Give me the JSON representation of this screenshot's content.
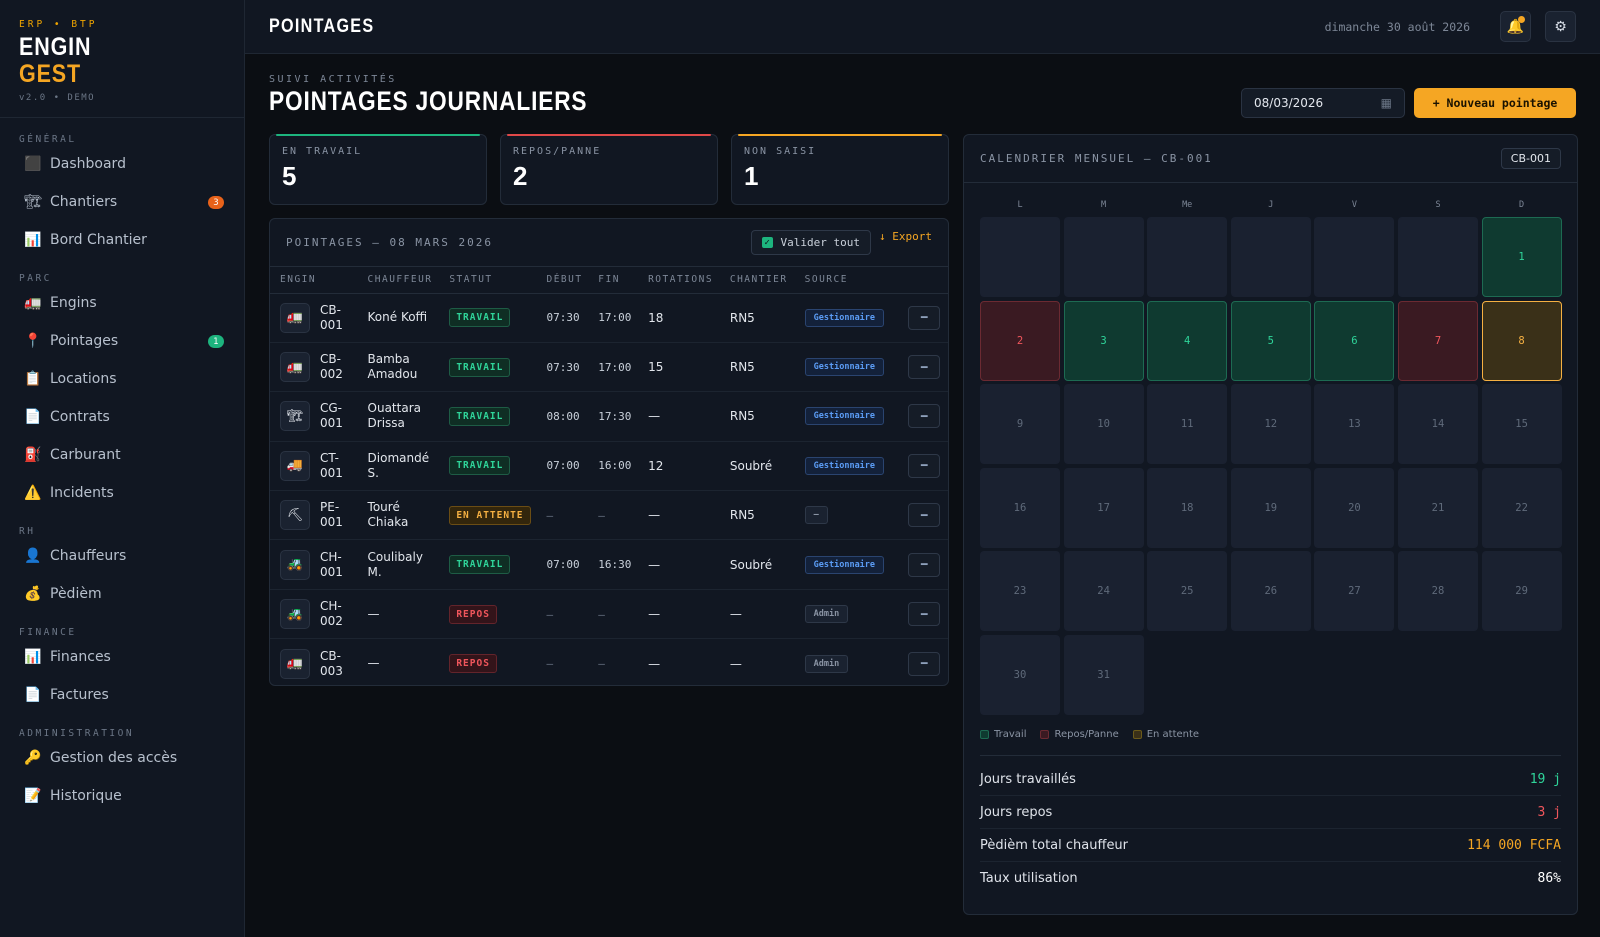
{
  "brand": {
    "tag": "ERP • BTP",
    "line1": "ENGIN",
    "line2": "GEST",
    "version": "v2.0 • DEMO"
  },
  "sidebar": {
    "sections": [
      {
        "title": "GÉNÉRAL",
        "items": [
          {
            "label": "Dashboard",
            "icon": "⬛",
            "icon_name": "dashboard-icon"
          },
          {
            "label": "Chantiers",
            "icon": "🏗",
            "icon_name": "construction-icon",
            "badge": "3",
            "badge_color": "#e8621a"
          },
          {
            "label": "Bord Chantier",
            "icon": "📊",
            "icon_name": "chart-icon"
          }
        ]
      },
      {
        "title": "PARC",
        "items": [
          {
            "label": "Engins",
            "icon": "🚛",
            "icon_name": "truck-icon"
          },
          {
            "label": "Pointages",
            "icon": "📍",
            "icon_name": "pin-icon",
            "badge": "1",
            "badge_color": "#1db47e"
          },
          {
            "label": "Locations",
            "icon": "📋",
            "icon_name": "clipboard-icon"
          },
          {
            "label": "Contrats",
            "icon": "📄",
            "icon_name": "document-icon"
          },
          {
            "label": "Carburant",
            "icon": "⛽",
            "icon_name": "fuel-icon"
          },
          {
            "label": "Incidents",
            "icon": "⚠️",
            "icon_name": "warning-icon"
          }
        ]
      },
      {
        "title": "RH",
        "items": [
          {
            "label": "Chauffeurs",
            "icon": "👤",
            "icon_name": "user-icon"
          },
          {
            "label": "Pèdièm",
            "icon": "💰",
            "icon_name": "money-bag-icon"
          }
        ]
      },
      {
        "title": "FINANCE",
        "items": [
          {
            "label": "Finances",
            "icon": "📊",
            "icon_name": "chart-icon"
          },
          {
            "label": "Factures",
            "icon": "📄",
            "icon_name": "invoice-icon"
          }
        ]
      },
      {
        "title": "ADMINISTRATION",
        "items": [
          {
            "label": "Gestion des accès",
            "icon": "🔑",
            "icon_name": "key-icon"
          },
          {
            "label": "Historique",
            "icon": "📝",
            "icon_name": "history-icon"
          }
        ]
      }
    ]
  },
  "topbar": {
    "title": "POINTAGES",
    "date": "dimanche 30 août 2026",
    "bell_icon": "🔔",
    "gear_icon": "⚙"
  },
  "header": {
    "kicker": "SUIVI ACTIVITÉS",
    "title": "POINTAGES JOURNALIERS",
    "date_value": "08/03/2026",
    "calendar_icon": "▦",
    "new_button": "+ Nouveau pointage"
  },
  "stats": [
    {
      "label": "EN TRAVAIL",
      "value": "5",
      "color": "#1db47e"
    },
    {
      "label": "REPOS/PANNE",
      "value": "2",
      "color": "#e04848"
    },
    {
      "label": "NON SAISI",
      "value": "1",
      "color": "#f5a623"
    }
  ],
  "table": {
    "title": "POINTAGES — 08 MARS 2026",
    "validate_label": "Valider tout",
    "export_label": "↓ Export",
    "columns": [
      "ENGIN",
      "CHAUFFEUR",
      "STATUT",
      "DÉBUT",
      "FIN",
      "ROTATIONS",
      "CHANTIER",
      "SOURCE",
      ""
    ],
    "rows": [
      {
        "icon": "🚛",
        "code": "CB-\n001",
        "driver": "Koné Koffi",
        "status": "TRAVAIL",
        "kind": "work",
        "start": "07:30",
        "end": "17:00",
        "rotations": "18",
        "site": "RN5",
        "source": "Gestionnaire",
        "src": "gest"
      },
      {
        "icon": "🚛",
        "code": "CB-\n002",
        "driver": "Bamba\nAmadou",
        "status": "TRAVAIL",
        "kind": "work",
        "start": "07:30",
        "end": "17:00",
        "rotations": "15",
        "site": "RN5",
        "source": "Gestionnaire",
        "src": "gest"
      },
      {
        "icon": "🏗",
        "code": "CG-\n001",
        "driver": "Ouattara\nDrissa",
        "status": "TRAVAIL",
        "kind": "work",
        "start": "08:00",
        "end": "17:30",
        "rotations": "—",
        "site": "RN5",
        "source": "Gestionnaire",
        "src": "gest"
      },
      {
        "icon": "🚚",
        "code": "CT-\n001",
        "driver": "Diomandé\nS.",
        "status": "TRAVAIL",
        "kind": "work",
        "start": "07:00",
        "end": "16:00",
        "rotations": "12",
        "site": "Soubré",
        "source": "Gestionnaire",
        "src": "gest"
      },
      {
        "icon": "⛏",
        "code": "PE-\n001",
        "driver": "Touré\nChiaka",
        "status": "EN ATTENTE",
        "kind": "wait",
        "start": "—",
        "end": "—",
        "rotations": "—",
        "site": "RN5",
        "source": "—",
        "src": "admin"
      },
      {
        "icon": "🚜",
        "code": "CH-\n001",
        "driver": "Coulibaly\nM.",
        "status": "TRAVAIL",
        "kind": "work",
        "start": "07:00",
        "end": "16:30",
        "rotations": "—",
        "site": "Soubré",
        "source": "Gestionnaire",
        "src": "gest"
      },
      {
        "icon": "🚜",
        "code": "CH-\n002",
        "driver": "—",
        "status": "REPOS",
        "kind": "rest",
        "start": "—",
        "end": "—",
        "rotations": "—",
        "site": "—",
        "source": "Admin",
        "src": "admin"
      },
      {
        "icon": "🚛",
        "code": "CB-\n003",
        "driver": "—",
        "status": "REPOS",
        "kind": "rest",
        "start": "—",
        "end": "—",
        "rotations": "—",
        "site": "—",
        "source": "Admin",
        "src": "admin"
      }
    ],
    "action_icon": "━"
  },
  "calendar": {
    "title": "CALENDRIER MENSUEL — CB-001",
    "tag": "CB-001",
    "weekdays": [
      "L",
      "M",
      "Me",
      "J",
      "V",
      "S",
      "D"
    ],
    "first_offset": 6,
    "days": 31,
    "status": {
      "1": "work",
      "2": "rest",
      "3": "work",
      "4": "work",
      "5": "work",
      "6": "work",
      "7": "rest",
      "8": "wait"
    },
    "legend": [
      {
        "label": "Travail",
        "kind": "work"
      },
      {
        "label": "Repos/Panne",
        "kind": "rest"
      },
      {
        "label": "En attente",
        "kind": "wait"
      }
    ],
    "summary": [
      {
        "label": "Jours travaillés",
        "value": "19 j",
        "color": "#2fd59a"
      },
      {
        "label": "Jours repos",
        "value": "3 j",
        "color": "#f0565c"
      },
      {
        "label": "Pèdièm total chauffeur",
        "value": "114 000 FCFA",
        "color": "#f5a623"
      },
      {
        "label": "Taux utilisation",
        "value": "86%",
        "color": "#ffffff"
      }
    ]
  }
}
